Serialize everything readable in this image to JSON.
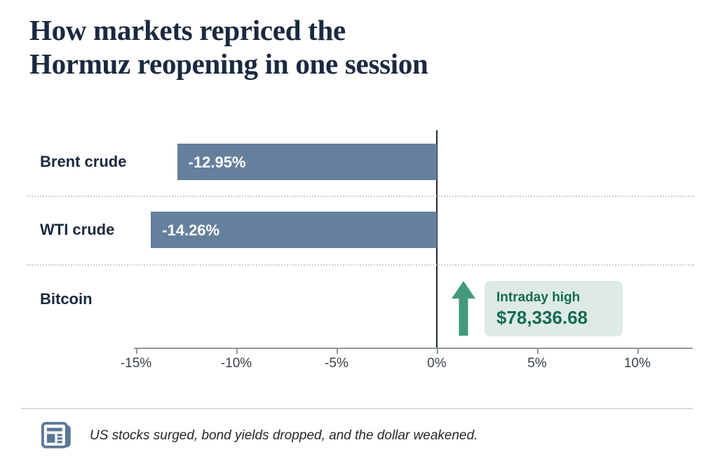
{
  "title": {
    "line1": "How markets repriced the",
    "line2": "Hormuz reopening in one session"
  },
  "chart_data": {
    "type": "bar",
    "orientation": "horizontal",
    "title": "How markets repriced the Hormuz reopening in one session",
    "categories": [
      "Brent crude",
      "WTI crude",
      "Bitcoin"
    ],
    "values": [
      -12.95,
      -14.26,
      null
    ],
    "value_labels": [
      "-12.95%",
      "-14.26%",
      null
    ],
    "unit": "percent change in one session",
    "x_ticks": [
      -15,
      -10,
      -5,
      0,
      5,
      10
    ],
    "x_tick_labels": [
      "-15%",
      "-10%",
      "-5%",
      "0%",
      "5%",
      "10%"
    ],
    "xlim": [
      -15.2,
      12.8
    ],
    "grid": "dotted horizontal row separators, solid vertical zero line",
    "legend": "none",
    "annotations": [
      {
        "target": "Bitcoin",
        "direction": "up",
        "label": "Intraday high",
        "value": "$78,336.68"
      }
    ]
  },
  "footer": {
    "note": "US stocks surged, bond yields dropped, and the dollar weakened."
  },
  "icons": {
    "up_arrow": "up-arrow-icon",
    "newspaper": "newspaper-icon"
  },
  "colors": {
    "bar": "#65809c",
    "title_text": "#1b2940",
    "arrow_green": "#43997e",
    "badge_bg": "#ddebe4",
    "badge_text": "#156a55",
    "axis_line": "#8f979f",
    "zero_line": "#1e2630",
    "tick_label": "#3a4149",
    "dotted_line": "#cdd0d4",
    "footer_icon": "#5a7894",
    "footer_text": "#24282c"
  }
}
